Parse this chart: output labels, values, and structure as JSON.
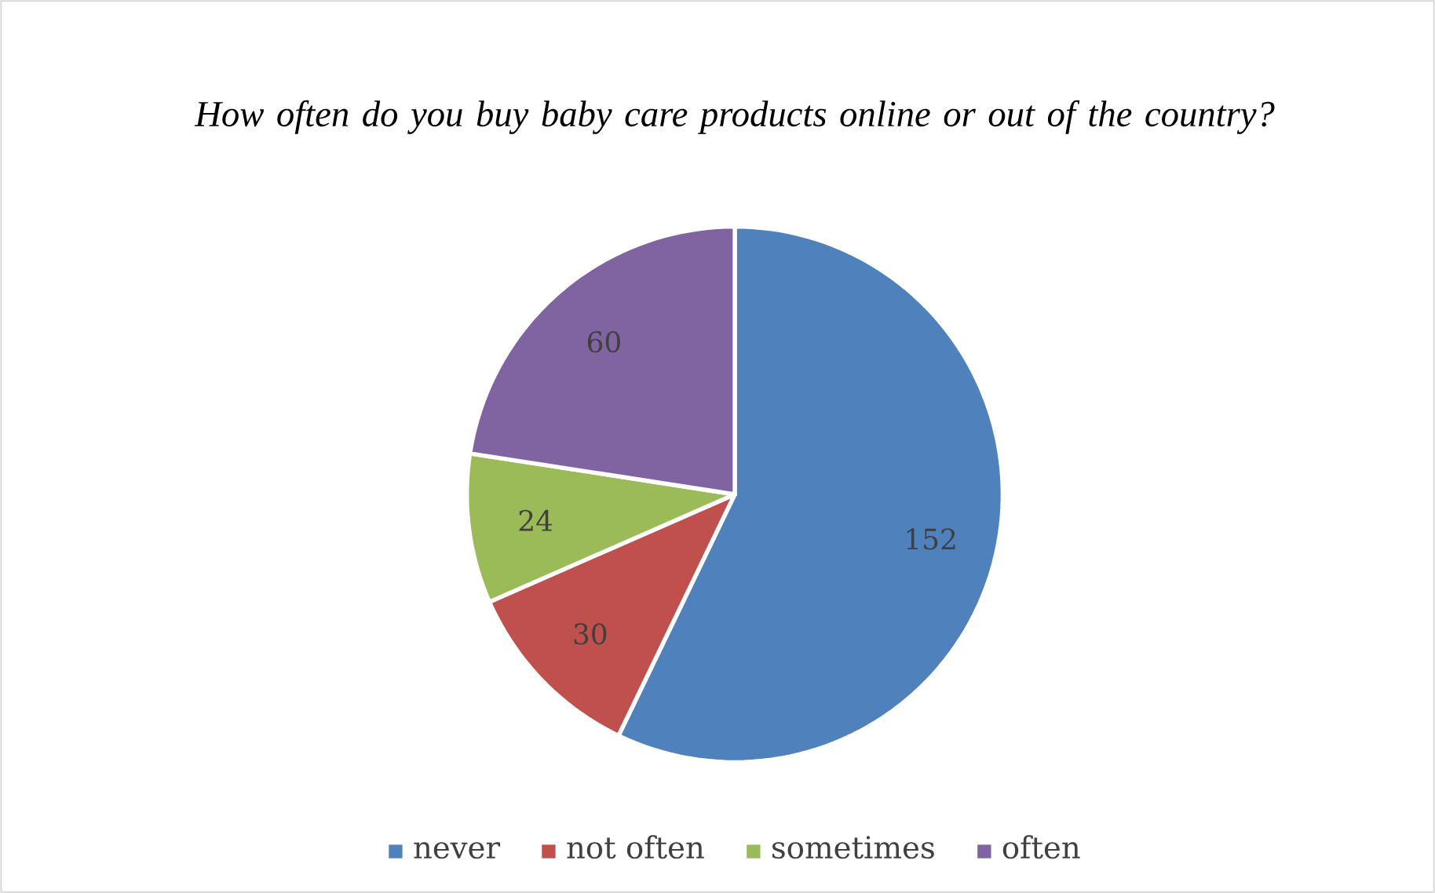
{
  "chart_data": {
    "type": "pie",
    "title": "How often do you buy baby care products online or out of the country?",
    "categories": [
      "never",
      "not often",
      "sometimes",
      "often"
    ],
    "values": [
      152,
      30,
      24,
      60
    ],
    "colors": [
      "#4f81bd",
      "#c0504d",
      "#9bbb59",
      "#8064a2"
    ],
    "data_labels": true,
    "legend": "bottom"
  }
}
